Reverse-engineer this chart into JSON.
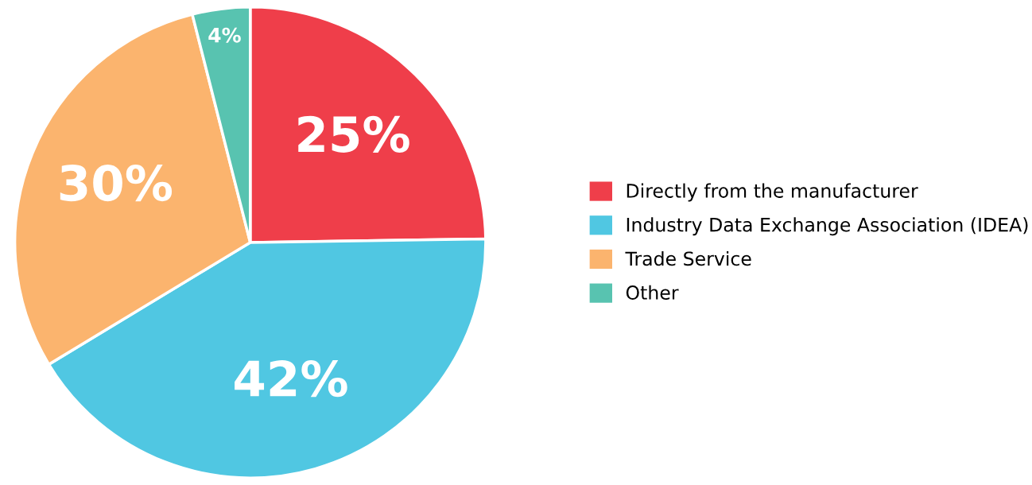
{
  "chart_data": {
    "type": "pie",
    "categories": [
      "Directly from the manufacturer",
      "Industry Data Exchange Association (IDEA)",
      "Trade Service",
      "Other"
    ],
    "values": [
      25,
      42,
      30,
      4
    ],
    "colors": [
      "#ef3e4a",
      "#50c7e2",
      "#fbb46e",
      "#58c3b0"
    ],
    "value_labels": [
      "25%",
      "42%",
      "30%",
      "4%"
    ],
    "legend": "right"
  }
}
